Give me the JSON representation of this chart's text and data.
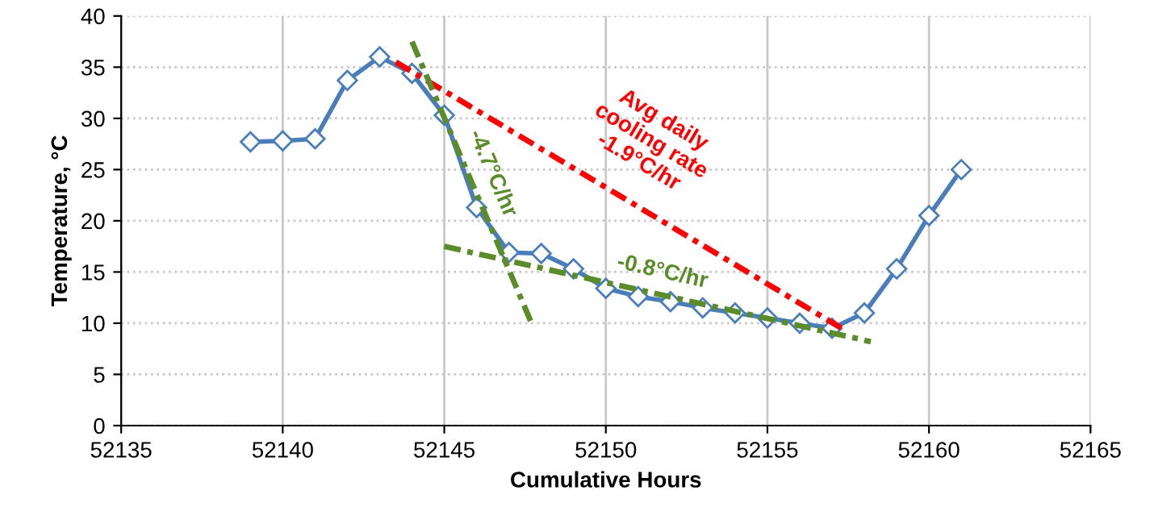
{
  "chart_data": {
    "type": "line",
    "xlabel": "Cumulative Hours",
    "ylabel": "Temperature, °C",
    "xlim": [
      52135,
      52165
    ],
    "ylim": [
      0,
      40
    ],
    "xticks": [
      52135,
      52140,
      52145,
      52150,
      52155,
      52160,
      52165
    ],
    "yticks": [
      0,
      5,
      10,
      15,
      20,
      25,
      30,
      35,
      40
    ],
    "grid": true,
    "legend": false,
    "series": [
      {
        "color": "#4a7ebb",
        "marker": "diamond",
        "line_style": "solid",
        "x": [
          52139,
          52140,
          52141,
          52142,
          52143,
          52144,
          52145,
          52146,
          52147,
          52148,
          52149,
          52150,
          52151,
          52152,
          52153,
          52154,
          52155,
          52156,
          52157,
          52158,
          52159,
          52160,
          52161
        ],
        "values": [
          27.7,
          27.8,
          28,
          33.7,
          36,
          34.4,
          30.3,
          21.3,
          16.9,
          16.8,
          15.3,
          13.4,
          12.6,
          12.1,
          11.5,
          11,
          10.5,
          10,
          9.5,
          11,
          15.3,
          20.5,
          25
        ]
      },
      {
        "name": "Avg daily\ncooling rate\n-1.9°C/hr",
        "color": "#ff0000",
        "marker": "none",
        "line_style": "dashed",
        "x": [
          52143.5,
          52157.3
        ],
        "values": [
          35.5,
          9.5
        ]
      },
      {
        "name": "-4.7°C/hr",
        "color": "#5b8c2a",
        "marker": "none",
        "line_style": "dashed",
        "x": [
          52144,
          52147.7
        ],
        "values": [
          37.5,
          10
        ]
      },
      {
        "name": "-0.8°C/hr",
        "color": "#5b8c2a",
        "marker": "none",
        "line_style": "dashed",
        "x": [
          52145,
          52158.2
        ],
        "values": [
          17.5,
          8.2
        ]
      }
    ]
  }
}
